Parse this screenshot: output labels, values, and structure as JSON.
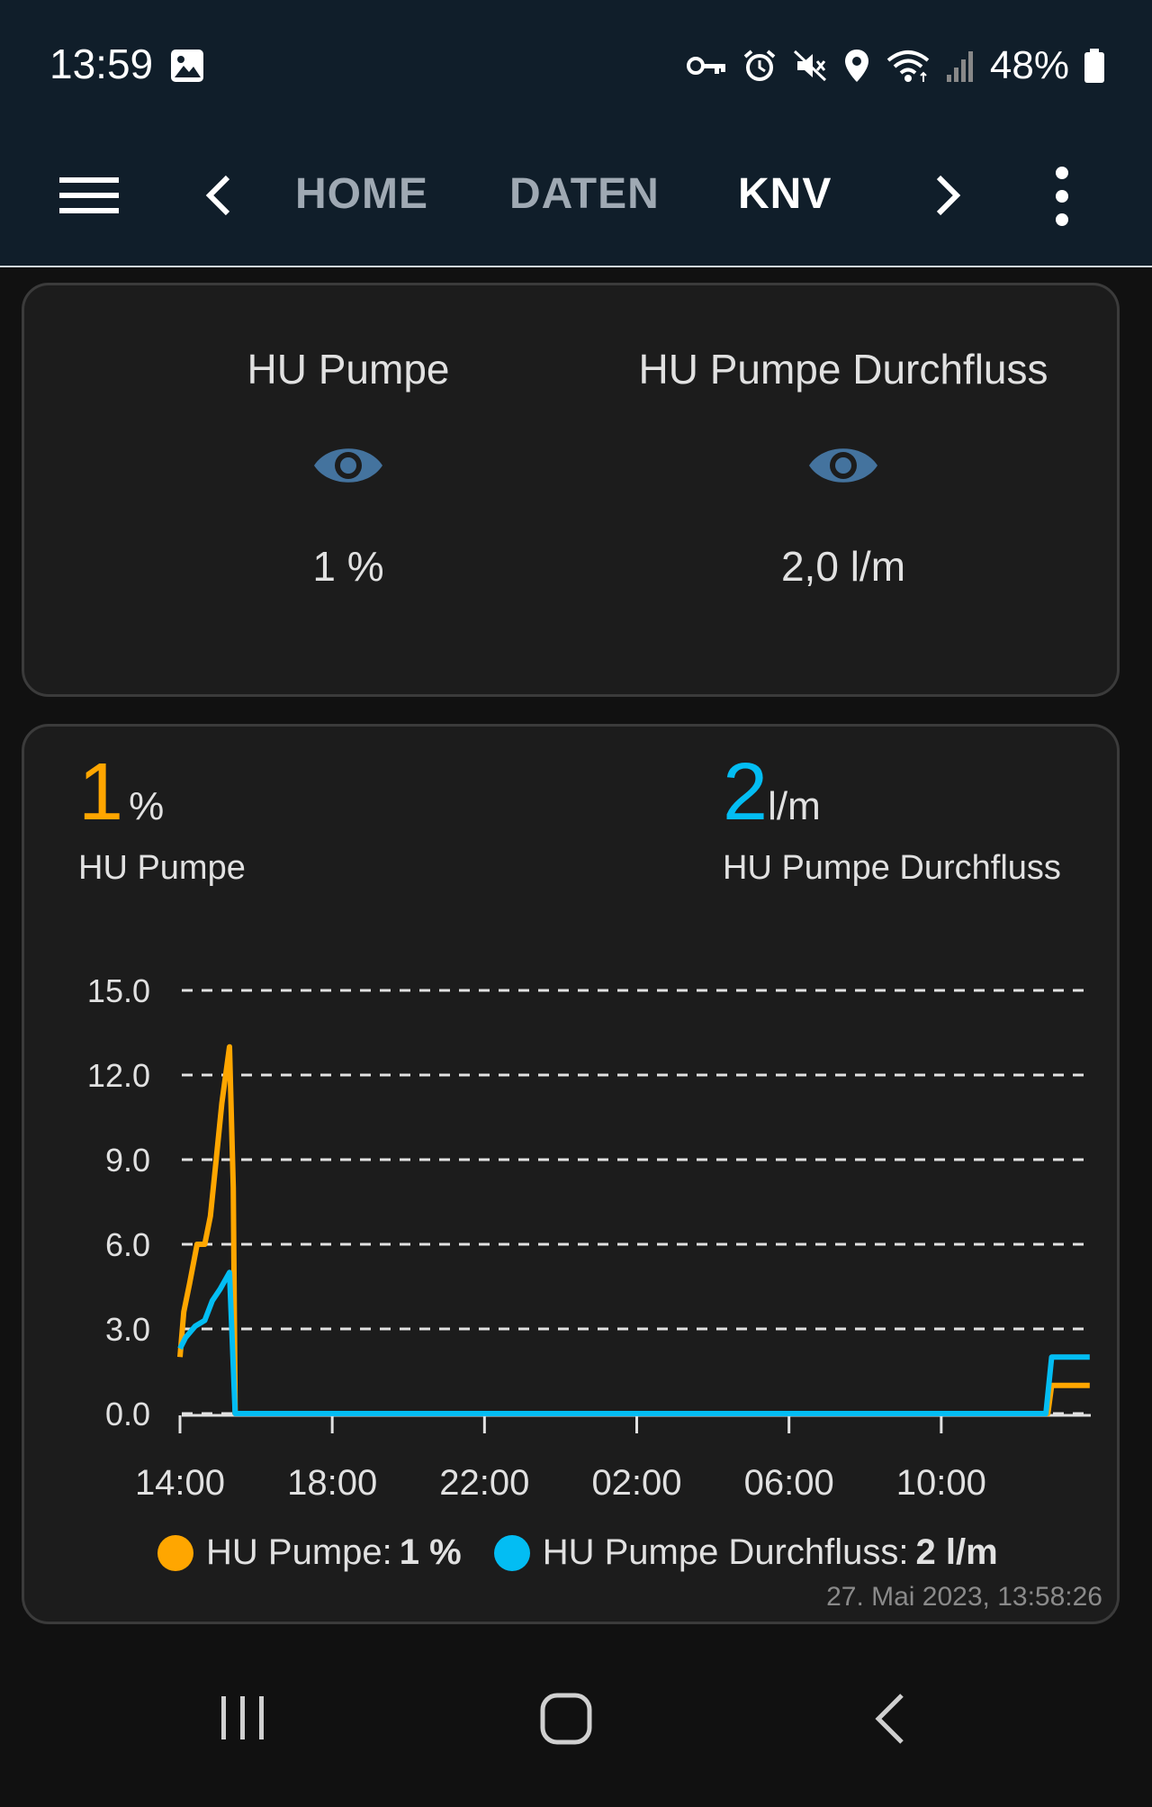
{
  "status_bar": {
    "time": "13:59",
    "battery": "48%",
    "icons": [
      "image-icon",
      "vpn-key-icon",
      "alarm-icon",
      "mute-icon",
      "location-icon",
      "wifi-icon",
      "signal-icon",
      "battery-icon"
    ]
  },
  "app_bar": {
    "tabs": [
      {
        "label": "HOME",
        "active": false
      },
      {
        "label": "DATEN",
        "active": false
      },
      {
        "label": "KNV",
        "active": true
      }
    ]
  },
  "entities_card": {
    "entities": [
      {
        "name": "HU Pumpe",
        "icon": "eye-icon",
        "state": "1 %"
      },
      {
        "name": "HU Pumpe Durchfluss",
        "icon": "eye-icon",
        "state": "2,0 l/m"
      }
    ]
  },
  "graph_card": {
    "entities": [
      {
        "value": "1",
        "unit": "%",
        "name": "HU Pumpe",
        "color": "#ffa600"
      },
      {
        "value": "2",
        "unit": "l/m",
        "name": "HU Pumpe Durchfluss",
        "color": "#03bdf3"
      }
    ],
    "legend": [
      {
        "label": "HU Pumpe: ",
        "value": "1 %",
        "color": "#ffa600"
      },
      {
        "label": "HU Pumpe Durchfluss: ",
        "value": "2 l/m",
        "color": "#03bdf3"
      }
    ],
    "timestamp": "27. Mai 2023, 13:58:26"
  },
  "chart_data": {
    "type": "line",
    "ylim": [
      0,
      15
    ],
    "yticks": [
      "15.0",
      "12.0",
      "9.0",
      "6.0",
      "3.0",
      "0.0"
    ],
    "xlim": [
      14,
      38
    ],
    "xticks": [
      {
        "label": "14:00",
        "hour": 14
      },
      {
        "label": "18:00",
        "hour": 18
      },
      {
        "label": "22:00",
        "hour": 22
      },
      {
        "label": "02:00",
        "hour": 26
      },
      {
        "label": "06:00",
        "hour": 30
      },
      {
        "label": "10:00",
        "hour": 34
      }
    ],
    "grid": true,
    "series": [
      {
        "name": "HU Pumpe",
        "color": "#ffa600",
        "points": [
          [
            14.0,
            2.0
          ],
          [
            14.1,
            3.6
          ],
          [
            14.25,
            4.6
          ],
          [
            14.45,
            6.0
          ],
          [
            14.65,
            6.0
          ],
          [
            14.8,
            7.0
          ],
          [
            14.95,
            9.0
          ],
          [
            15.1,
            11.0
          ],
          [
            15.3,
            13.0
          ],
          [
            15.4,
            8.0
          ],
          [
            15.45,
            0
          ],
          [
            36.8,
            0
          ],
          [
            36.9,
            1.0
          ],
          [
            37.9,
            1.0
          ]
        ]
      },
      {
        "name": "HU Pumpe Durchfluss",
        "color": "#03bdf3",
        "points": [
          [
            14.0,
            2.3
          ],
          [
            14.15,
            2.7
          ],
          [
            14.4,
            3.1
          ],
          [
            14.65,
            3.3
          ],
          [
            14.85,
            4.0
          ],
          [
            15.05,
            4.4
          ],
          [
            15.3,
            5.0
          ],
          [
            15.45,
            0
          ],
          [
            36.75,
            0
          ],
          [
            36.9,
            2.0
          ],
          [
            37.9,
            2.0
          ]
        ]
      }
    ]
  }
}
